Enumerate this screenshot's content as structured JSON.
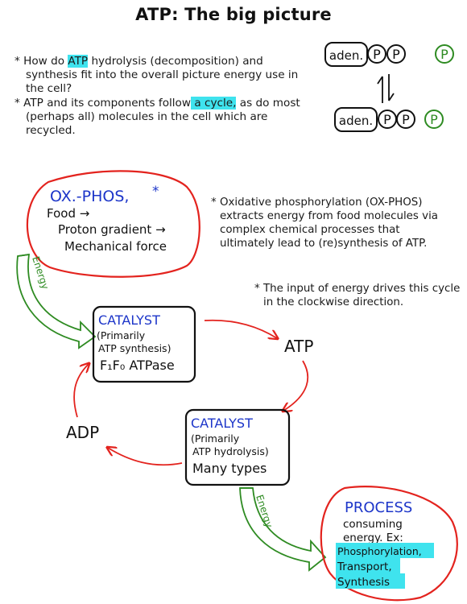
{
  "title": "ATP: The big picture",
  "intro_bullets": [
    {
      "before": "How do ",
      "highlight": "ATP",
      "after": " hydrolysis (decomposition) and synthesis fit into the overall picture energy use in the cell?"
    },
    {
      "before": "ATP and its components follow",
      "highlight": " a cycle,",
      "after": " as do most (perhaps all) molecules in the cell which are recycled."
    }
  ],
  "atp_sketch": {
    "adenosine_label": "aden.",
    "phosphate_label": "P"
  },
  "oxphos_box": {
    "title": "OX.-PHOS,",
    "lines": [
      "Food →",
      "Proton gradient →",
      "Mechanical force"
    ]
  },
  "oxphos_note": "Oxidative phosphorylation (OX-PHOS) extracts energy from food molecules via complex chemical processes that ultimately lead to (re)synthesis of ATP.",
  "clockwise_note": "The input of energy drives this cycle in the clockwise direction.",
  "energy_label": "Energy",
  "catalyst_synthesis": {
    "title": "CATALYST",
    "lines": [
      "(Primarily",
      "ATP synthesis)",
      "F₁F₀ ATPase"
    ]
  },
  "catalyst_hydrolysis": {
    "title": "CATALYST",
    "lines": [
      "(Primarily",
      "ATP hydrolysis)",
      "Many types"
    ]
  },
  "atp_label": "ATP",
  "adp_label": "ADP",
  "process_box": {
    "title": "PROCESS",
    "lines": [
      "consuming",
      "energy. Ex:"
    ],
    "examples": [
      "Phosphorylation,",
      "Transport,",
      "Synthesis"
    ]
  },
  "colors": {
    "red": "#e3231e",
    "green": "#2e8b22",
    "blue": "#1c35c9",
    "highlight": "#3fe3ee"
  }
}
